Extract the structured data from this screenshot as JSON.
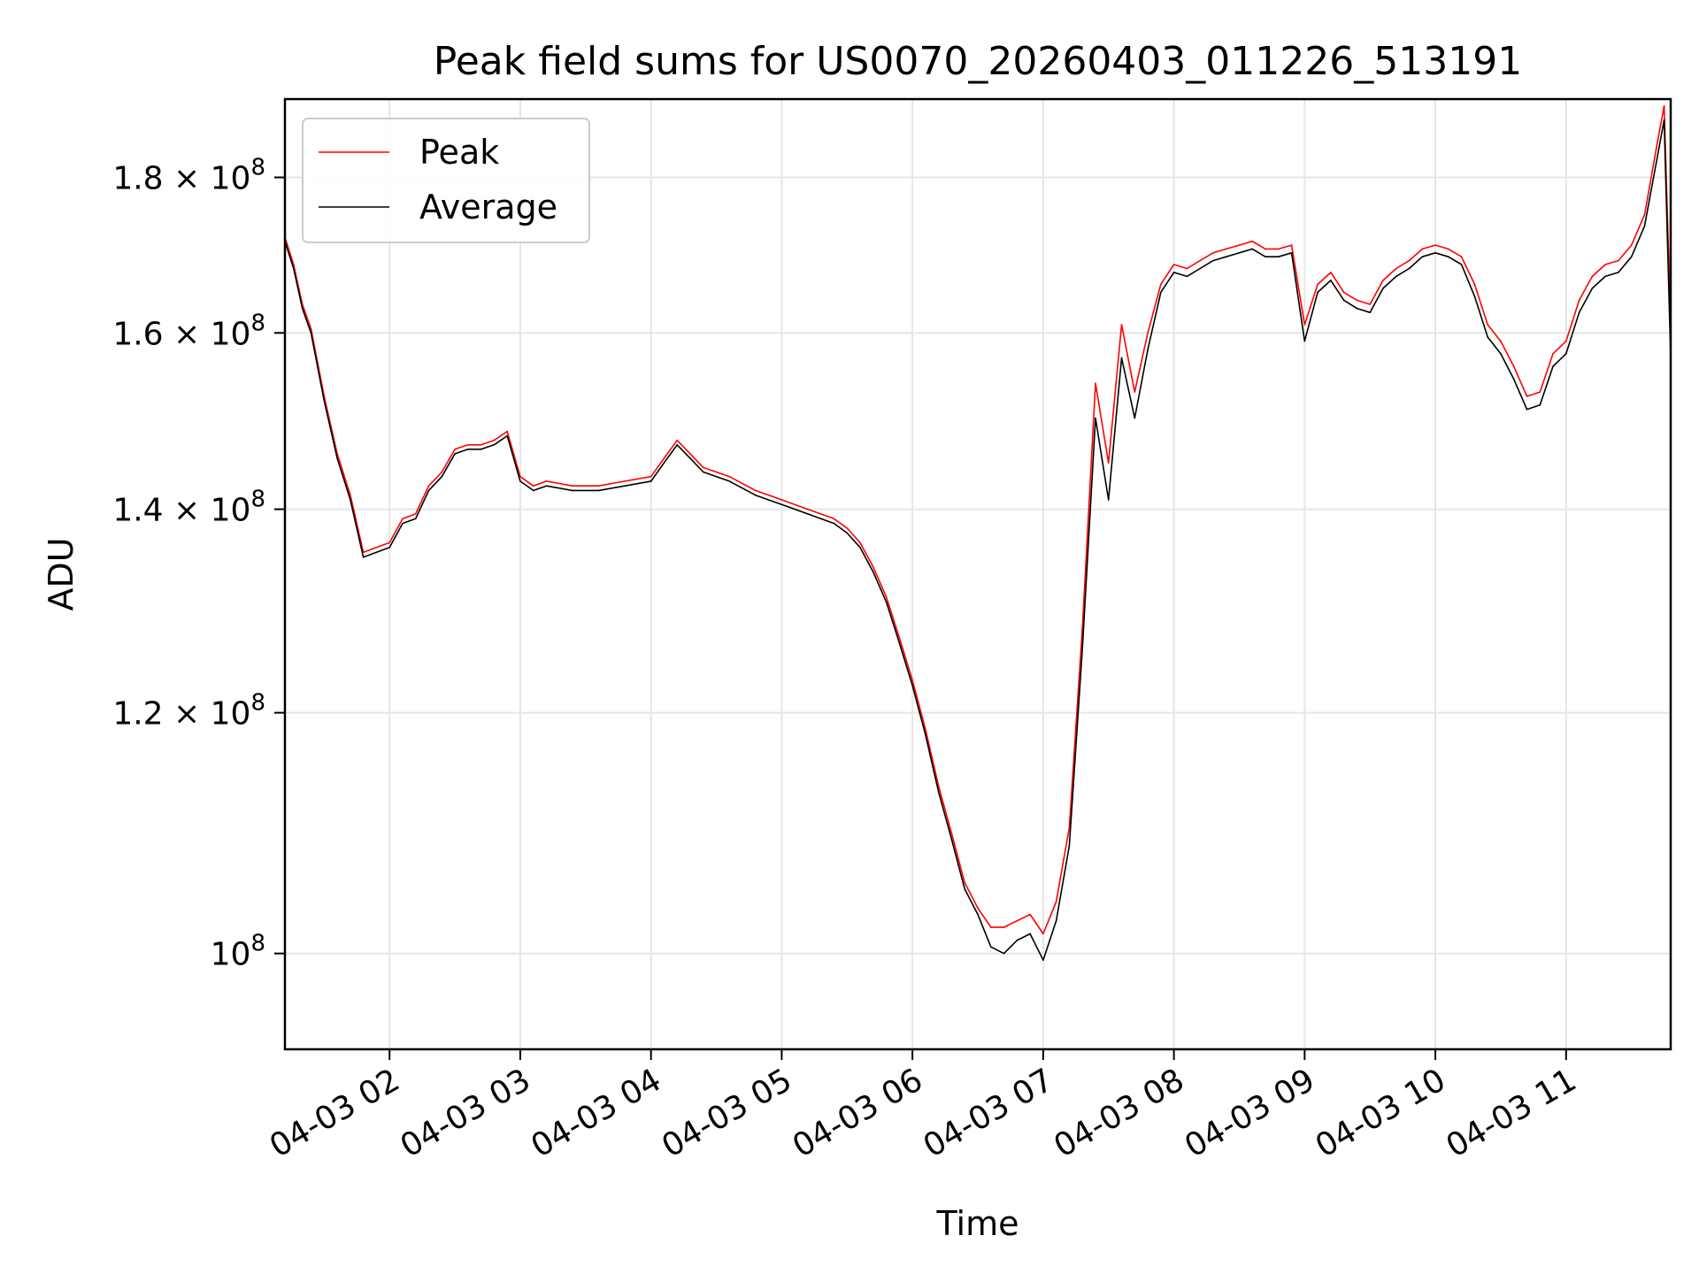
{
  "chart_data": {
    "type": "line",
    "title": "Peak field sums for US0070_20260403_011226_513191",
    "xlabel": "Time",
    "ylabel": "ADU",
    "y_scale": "log",
    "x_range": [
      "04-03 01:12",
      "04-03 11:48"
    ],
    "ylim": [
      93000000,
      191000000
    ],
    "grid": true,
    "legend_position": "top-left",
    "x_ticks": [
      {
        "value": "04-03 02:00",
        "label": "04-03 02"
      },
      {
        "value": "04-03 03:00",
        "label": "04-03 03"
      },
      {
        "value": "04-03 04:00",
        "label": "04-03 04"
      },
      {
        "value": "04-03 05:00",
        "label": "04-03 05"
      },
      {
        "value": "04-03 06:00",
        "label": "04-03 06"
      },
      {
        "value": "04-03 07:00",
        "label": "04-03 07"
      },
      {
        "value": "04-03 08:00",
        "label": "04-03 08"
      },
      {
        "value": "04-03 09:00",
        "label": "04-03 09"
      },
      {
        "value": "04-03 10:00",
        "label": "04-03 10"
      },
      {
        "value": "04-03 11:00",
        "label": "04-03 11"
      }
    ],
    "y_ticks": [
      {
        "value": 100000000,
        "mantissa": "",
        "exponent": "8"
      },
      {
        "value": 120000000,
        "mantissa": "1.2",
        "exponent": "8"
      },
      {
        "value": 140000000,
        "mantissa": "1.4",
        "exponent": "8"
      },
      {
        "value": 160000000,
        "mantissa": "1.6",
        "exponent": "8"
      },
      {
        "value": 180000000,
        "mantissa": "1.8",
        "exponent": "8"
      }
    ],
    "series": [
      {
        "name": "Peak",
        "color": "#ff0000",
        "x": [
          "04-03 01:12",
          "04-03 01:16",
          "04-03 01:20",
          "04-03 01:24",
          "04-03 01:30",
          "04-03 01:36",
          "04-03 01:42",
          "04-03 01:48",
          "04-03 01:54",
          "04-03 02:00",
          "04-03 02:06",
          "04-03 02:12",
          "04-03 02:18",
          "04-03 02:24",
          "04-03 02:30",
          "04-03 02:36",
          "04-03 02:42",
          "04-03 02:48",
          "04-03 02:54",
          "04-03 03:00",
          "04-03 03:06",
          "04-03 03:12",
          "04-03 03:24",
          "04-03 03:36",
          "04-03 03:48",
          "04-03 04:00",
          "04-03 04:06",
          "04-03 04:12",
          "04-03 04:18",
          "04-03 04:24",
          "04-03 04:36",
          "04-03 04:48",
          "04-03 05:00",
          "04-03 05:12",
          "04-03 05:24",
          "04-03 05:30",
          "04-03 05:36",
          "04-03 05:42",
          "04-03 05:48",
          "04-03 05:54",
          "04-03 06:00",
          "04-03 06:06",
          "04-03 06:12",
          "04-03 06:18",
          "04-03 06:24",
          "04-03 06:30",
          "04-03 06:36",
          "04-03 06:42",
          "04-03 06:48",
          "04-03 06:54",
          "04-03 07:00",
          "04-03 07:06",
          "04-03 07:12",
          "04-03 07:18",
          "04-03 07:24",
          "04-03 07:30",
          "04-03 07:36",
          "04-03 07:42",
          "04-03 07:48",
          "04-03 07:54",
          "04-03 08:00",
          "04-03 08:06",
          "04-03 08:12",
          "04-03 08:18",
          "04-03 08:24",
          "04-03 08:30",
          "04-03 08:36",
          "04-03 08:42",
          "04-03 08:48",
          "04-03 08:54",
          "04-03 09:00",
          "04-03 09:06",
          "04-03 09:12",
          "04-03 09:18",
          "04-03 09:24",
          "04-03 09:30",
          "04-03 09:36",
          "04-03 09:42",
          "04-03 09:48",
          "04-03 09:54",
          "04-03 10:00",
          "04-03 10:06",
          "04-03 10:12",
          "04-03 10:18",
          "04-03 10:24",
          "04-03 10:30",
          "04-03 10:36",
          "04-03 10:42",
          "04-03 10:48",
          "04-03 10:54",
          "04-03 11:00",
          "04-03 11:06",
          "04-03 11:12",
          "04-03 11:18",
          "04-03 11:24",
          "04-03 11:30",
          "04-03 11:36",
          "04-03 11:42",
          "04-03 11:45",
          "04-03 11:48"
        ],
        "values": [
          172000000,
          168500000,
          163500000,
          160500000,
          152500000,
          146000000,
          141500000,
          135500000,
          136000000,
          136500000,
          139000000,
          139500000,
          142500000,
          144000000,
          146500000,
          147000000,
          147000000,
          147500000,
          148500000,
          143500000,
          142500000,
          143000000,
          142500000,
          142500000,
          143000000,
          143500000,
          145500000,
          147500000,
          146000000,
          144500000,
          143500000,
          142000000,
          141000000,
          140000000,
          139000000,
          138000000,
          136500000,
          134000000,
          131000000,
          127000000,
          123000000,
          118500000,
          113500000,
          109500000,
          105500000,
          103500000,
          102000000,
          102000000,
          102500000,
          103000000,
          101500000,
          104000000,
          110000000,
          128000000,
          154000000,
          145000000,
          161000000,
          153000000,
          160000000,
          166000000,
          168500000,
          168000000,
          169000000,
          170000000,
          170500000,
          171000000,
          171500000,
          170500000,
          170500000,
          171000000,
          161000000,
          166000000,
          167500000,
          165000000,
          164000000,
          163500000,
          166500000,
          168000000,
          169000000,
          170500000,
          171000000,
          170500000,
          169500000,
          166000000,
          161000000,
          159000000,
          156000000,
          152500000,
          153000000,
          157500000,
          159000000,
          164000000,
          167000000,
          168500000,
          169000000,
          171000000,
          175000000,
          185000000,
          190000000,
          161000000
        ]
      },
      {
        "name": "Average",
        "color": "#000000",
        "x": [
          "04-03 01:12",
          "04-03 01:16",
          "04-03 01:20",
          "04-03 01:24",
          "04-03 01:30",
          "04-03 01:36",
          "04-03 01:42",
          "04-03 01:48",
          "04-03 01:54",
          "04-03 02:00",
          "04-03 02:06",
          "04-03 02:12",
          "04-03 02:18",
          "04-03 02:24",
          "04-03 02:30",
          "04-03 02:36",
          "04-03 02:42",
          "04-03 02:48",
          "04-03 02:54",
          "04-03 03:00",
          "04-03 03:06",
          "04-03 03:12",
          "04-03 03:24",
          "04-03 03:36",
          "04-03 03:48",
          "04-03 04:00",
          "04-03 04:06",
          "04-03 04:12",
          "04-03 04:18",
          "04-03 04:24",
          "04-03 04:36",
          "04-03 04:48",
          "04-03 05:00",
          "04-03 05:12",
          "04-03 05:24",
          "04-03 05:30",
          "04-03 05:36",
          "04-03 05:42",
          "04-03 05:48",
          "04-03 05:54",
          "04-03 06:00",
          "04-03 06:06",
          "04-03 06:12",
          "04-03 06:18",
          "04-03 06:24",
          "04-03 06:30",
          "04-03 06:36",
          "04-03 06:42",
          "04-03 06:48",
          "04-03 06:54",
          "04-03 07:00",
          "04-03 07:06",
          "04-03 07:12",
          "04-03 07:18",
          "04-03 07:24",
          "04-03 07:30",
          "04-03 07:36",
          "04-03 07:42",
          "04-03 07:48",
          "04-03 07:54",
          "04-03 08:00",
          "04-03 08:06",
          "04-03 08:12",
          "04-03 08:18",
          "04-03 08:24",
          "04-03 08:30",
          "04-03 08:36",
          "04-03 08:42",
          "04-03 08:48",
          "04-03 08:54",
          "04-03 09:00",
          "04-03 09:06",
          "04-03 09:12",
          "04-03 09:18",
          "04-03 09:24",
          "04-03 09:30",
          "04-03 09:36",
          "04-03 09:42",
          "04-03 09:48",
          "04-03 09:54",
          "04-03 10:00",
          "04-03 10:06",
          "04-03 10:12",
          "04-03 10:18",
          "04-03 10:24",
          "04-03 10:30",
          "04-03 10:36",
          "04-03 10:42",
          "04-03 10:48",
          "04-03 10:54",
          "04-03 11:00",
          "04-03 11:06",
          "04-03 11:12",
          "04-03 11:18",
          "04-03 11:24",
          "04-03 11:30",
          "04-03 11:36",
          "04-03 11:42",
          "04-03 11:45",
          "04-03 11:48"
        ],
        "values": [
          171500000,
          168000000,
          163000000,
          160000000,
          152000000,
          145500000,
          141000000,
          135000000,
          135500000,
          136000000,
          138500000,
          139000000,
          142000000,
          143500000,
          146000000,
          146500000,
          146500000,
          147000000,
          148000000,
          143000000,
          142000000,
          142500000,
          142000000,
          142000000,
          142500000,
          143000000,
          145000000,
          147000000,
          145500000,
          144000000,
          143000000,
          141500000,
          140500000,
          139500000,
          138500000,
          137500000,
          136000000,
          133500000,
          130500000,
          126500000,
          122500000,
          118000000,
          113000000,
          109000000,
          105000000,
          103000000,
          100500000,
          100000000,
          101000000,
          101500000,
          99500000,
          102500000,
          108500000,
          126000000,
          150000000,
          141000000,
          157000000,
          150000000,
          158000000,
          165000000,
          167500000,
          167000000,
          168000000,
          169000000,
          169500000,
          170000000,
          170500000,
          169500000,
          169500000,
          170000000,
          159000000,
          165000000,
          166500000,
          164000000,
          163000000,
          162500000,
          165500000,
          167000000,
          168000000,
          169500000,
          170000000,
          169500000,
          168500000,
          164500000,
          159500000,
          157500000,
          154500000,
          151000000,
          151500000,
          156000000,
          157500000,
          162500000,
          165500000,
          167000000,
          167500000,
          169500000,
          173500000,
          183000000,
          188000000,
          157000000
        ]
      }
    ]
  }
}
